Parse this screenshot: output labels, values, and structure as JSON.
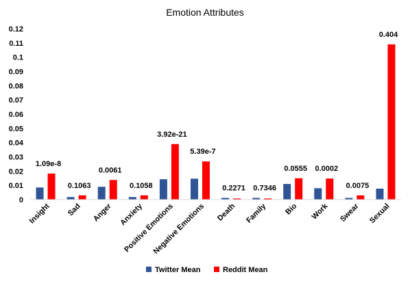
{
  "chart_data": {
    "type": "bar",
    "title": "Emotion Attributes",
    "xlabel": "",
    "ylabel": "",
    "ylim": [
      0,
      0.12
    ],
    "yticks": [
      "0",
      "0.01",
      "0.02",
      "0.03",
      "0.04",
      "0.05",
      "0.06",
      "0.07",
      "0.08",
      "0.09",
      "0.1",
      "0.11",
      "0.12"
    ],
    "grid": false,
    "legend": "bottom",
    "categories": [
      "Insight",
      "Sad",
      "Anger",
      "Anxiety",
      "Positive Emotions",
      "Negative Emotions",
      "Death",
      "Family",
      "Bio",
      "Work",
      "Swear",
      "Sexual"
    ],
    "series": [
      {
        "name": "Twitter Mean",
        "color": "#2f5597",
        "values": [
          0.0085,
          0.0018,
          0.009,
          0.0018,
          0.0143,
          0.0147,
          0.0012,
          0.0012,
          0.011,
          0.008,
          0.0012,
          0.0077
        ]
      },
      {
        "name": "Reddit Mean",
        "color": "#ff0000",
        "values": [
          0.0183,
          0.003,
          0.0138,
          0.003,
          0.039,
          0.0268,
          0.0008,
          0.0008,
          0.015,
          0.0148,
          0.003,
          0.109
        ]
      }
    ],
    "annotations": [
      "1.09e-8",
      "0.1063",
      "0.0061",
      "0.1058",
      "3.92e-21",
      "5.39e-7",
      "0.2271",
      "0.7346",
      "0.0555",
      "0.0002",
      "0.0075",
      "0.404"
    ]
  }
}
